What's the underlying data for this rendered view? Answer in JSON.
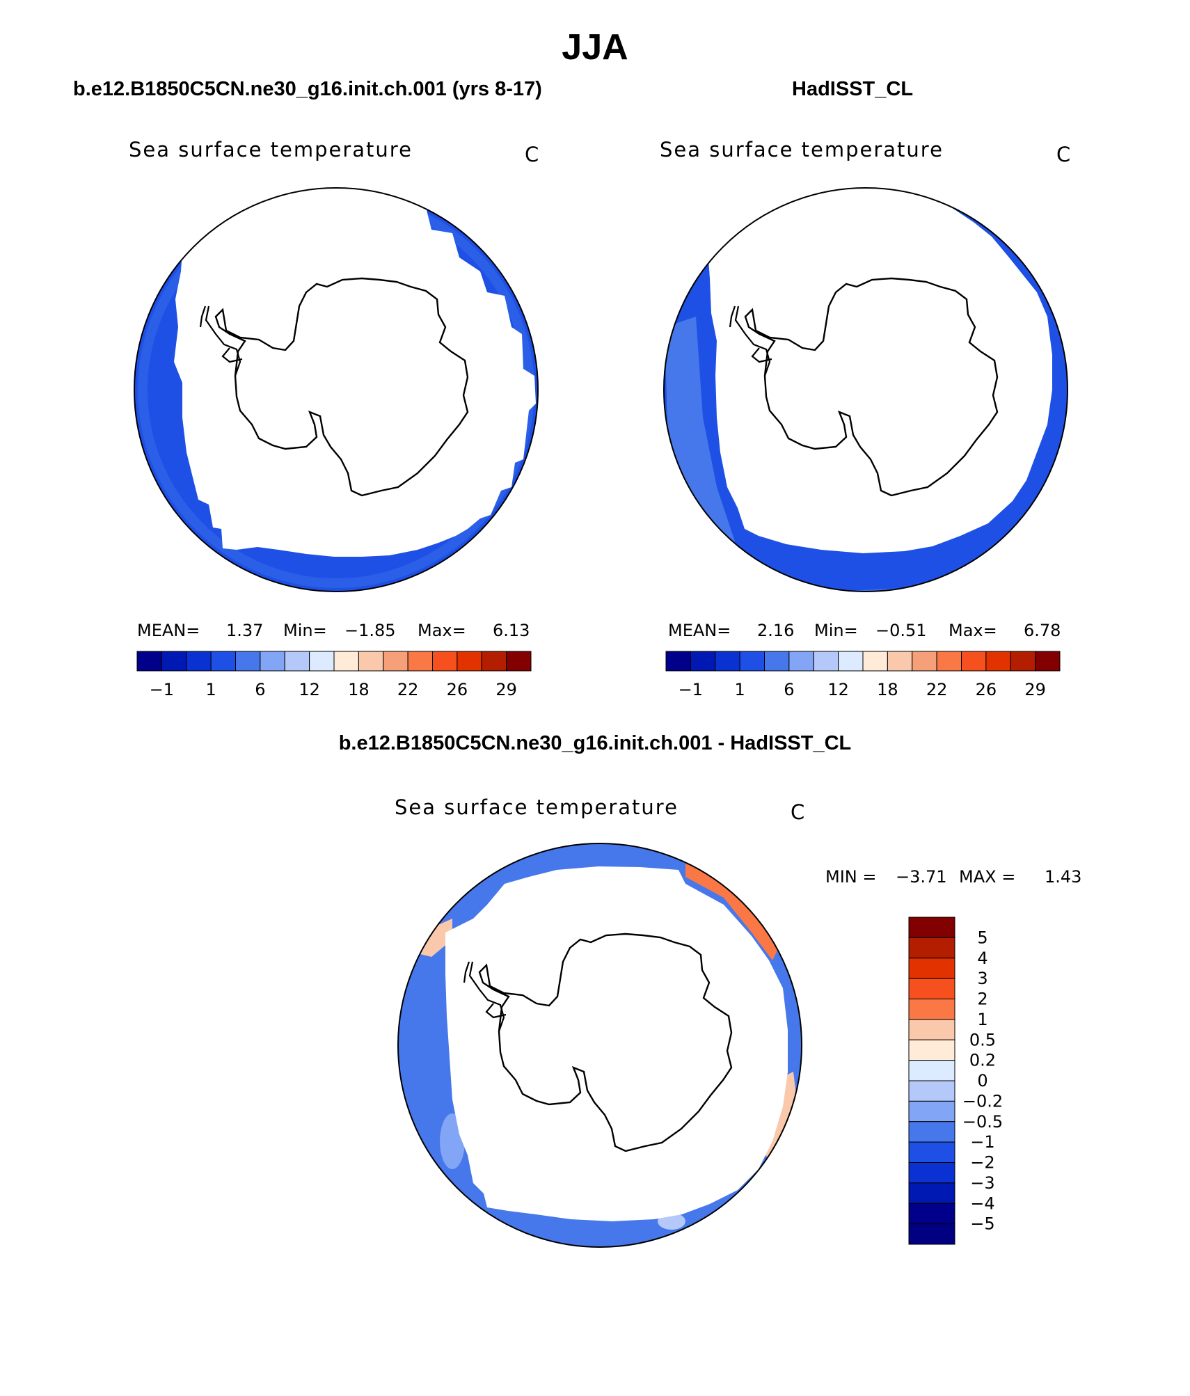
{
  "page": {
    "title": "JJA"
  },
  "panels": [
    {
      "id": "model",
      "header": "b.e12.B1850C5CN.ne30_g16.init.ch.001 (yrs 8-17)",
      "variable": "Sea surface temperature",
      "units": "C",
      "stats": {
        "mean_label": "MEAN=",
        "mean": "1.37",
        "min_label": "Min=",
        "min": "−1.85",
        "max_label": "Max=",
        "max": "6.13"
      },
      "colorbar": {
        "colors": [
          "#00008b",
          "#0019b3",
          "#0a32d2",
          "#1e50e6",
          "#4678eb",
          "#82a5f5",
          "#b4c8fa",
          "#dcebff",
          "#ffebd7",
          "#fac8aa",
          "#f5a078",
          "#fa7846",
          "#f5501e",
          "#e13200",
          "#b41e00",
          "#820000"
        ],
        "labels": [
          "−1",
          "1",
          "6",
          "12",
          "18",
          "22",
          "26",
          "29"
        ]
      }
    },
    {
      "id": "obs",
      "header": "HadISST_CL",
      "variable": "Sea surface temperature",
      "units": "C",
      "stats": {
        "mean_label": "MEAN=",
        "mean": "2.16",
        "min_label": "Min=",
        "min": "−0.51",
        "max_label": "Max=",
        "max": "6.78"
      },
      "colorbar": {
        "colors": [
          "#00008b",
          "#0019b3",
          "#0a32d2",
          "#1e50e6",
          "#4678eb",
          "#82a5f5",
          "#b4c8fa",
          "#dcebff",
          "#ffebd7",
          "#fac8aa",
          "#f5a078",
          "#fa7846",
          "#f5501e",
          "#e13200",
          "#b41e00",
          "#820000"
        ],
        "labels": [
          "−1",
          "1",
          "6",
          "12",
          "18",
          "22",
          "26",
          "29"
        ]
      }
    },
    {
      "id": "diff",
      "header": "b.e12.B1850C5CN.ne30_g16.init.ch.001 - HadISST_CL",
      "variable": "Sea surface temperature",
      "units": "C",
      "stats": {
        "min_label": "MIN =",
        "min": "−3.71",
        "max_label": "MAX =",
        "max": "1.43"
      },
      "colorbar": {
        "colors_top_to_bottom": [
          "#820000",
          "#b41e00",
          "#e13200",
          "#f5501e",
          "#fa7846",
          "#fac8aa",
          "#ffebd7",
          "#dcebff",
          "#b4c8fa",
          "#82a5f5",
          "#4678eb",
          "#1e50e6",
          "#0a32d2",
          "#0019b3",
          "#00008b",
          "#000080"
        ],
        "labels": [
          "5",
          "4",
          "3",
          "2",
          "1",
          "0.5",
          "0.2",
          "0",
          "−0.2",
          "−0.5",
          "−1",
          "−2",
          "−3",
          "−4",
          "−5"
        ]
      }
    }
  ],
  "map_colors": {
    "ocean_dark": "#1e50e6",
    "ocean_mid": "#2b5fe8",
    "ocean_light": "#4678eb",
    "ocean_pale": "#82a5f5",
    "diff_base": "#4678eb",
    "diff_warm": "#fa7846",
    "diff_warm_light": "#fac8aa",
    "land_fill": "#ffffff",
    "coast_stroke": "#000000"
  }
}
